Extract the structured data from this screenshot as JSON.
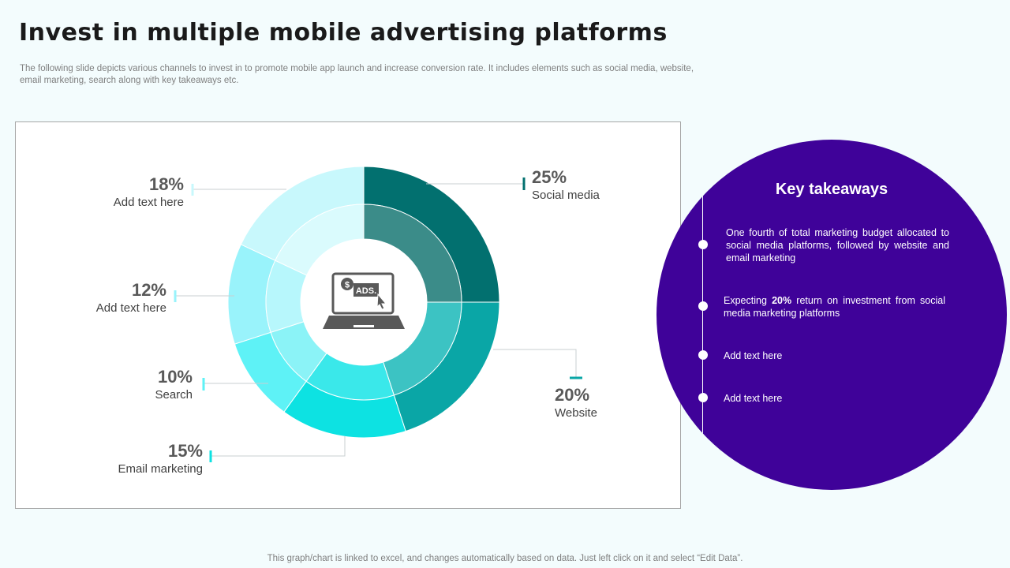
{
  "page": {
    "title": "Invest in multiple mobile advertising platforms",
    "subtitle": "The following slide depicts various channels to invest in to promote mobile app launch and increase conversion rate. It includes elements such as social media, website, email marketing, search along with key takeaways etc.",
    "footer": "This graph/chart is linked to excel, and changes automatically based on data. Just left click on it and select “Edit Data”."
  },
  "chart_data": {
    "type": "pie",
    "title": "",
    "center_icon": "laptop-ads-icon",
    "center_icon_text": "ADS.",
    "categories": [
      "Social media",
      "Website",
      "Email marketing",
      "Search",
      "Add text here",
      "Add text here"
    ],
    "values": [
      25,
      20,
      15,
      10,
      12,
      18
    ],
    "value_labels": [
      "25%",
      "20%",
      "15%",
      "10%",
      "12%",
      "18%"
    ],
    "colors": [
      "#02706f",
      "#0aa6a6",
      "#0de2e2",
      "#5ef2f6",
      "#99f3fb",
      "#c8f8fc"
    ],
    "inner_colors": [
      "#3b8c89",
      "#3cc3c3",
      "#3ae8ea",
      "#8bf3f7",
      "#b7f7fc",
      "#dafbfd"
    ]
  },
  "takeaways": {
    "title": "Key takeaways",
    "items": [
      {
        "pre": "One fourth of total marketing budget allocated to social media platforms, followed by website and email marketing",
        "bold": "",
        "post": ""
      },
      {
        "pre": "Expecting ",
        "bold": "20%",
        "post": " return on investment from social media marketing platforms"
      },
      {
        "pre": "Add text here",
        "bold": "",
        "post": ""
      },
      {
        "pre": "Add text here",
        "bold": "",
        "post": ""
      }
    ]
  }
}
